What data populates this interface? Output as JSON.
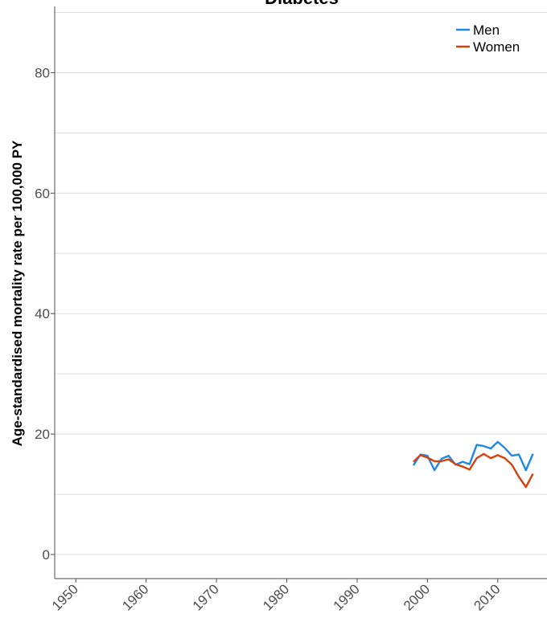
{
  "chart_data": {
    "type": "line",
    "title": "Diabetes",
    "xlabel": "",
    "ylabel": "Age-standardised mortality rate per 100,000 PY",
    "xlim": [
      1947,
      2017
    ],
    "ylim": [
      -4,
      91
    ],
    "x_ticks": [
      1950,
      1960,
      1970,
      1980,
      1990,
      2000,
      2010
    ],
    "y_ticks": [
      0,
      20,
      40,
      60,
      80
    ],
    "y_minor_ticks": [
      10,
      30,
      50,
      70,
      90
    ],
    "grid": true,
    "legend_position": "top-right",
    "colors": {
      "Men": "#1e88e5",
      "Women": "#d6400c",
      "grid": "#dcdcdc",
      "axis": "#4d4d4d"
    },
    "series": [
      {
        "name": "Men",
        "x": [
          1998,
          1999,
          2000,
          2001,
          2002,
          2003,
          2004,
          2005,
          2006,
          2007,
          2008,
          2009,
          2010,
          2011,
          2012,
          2013,
          2014,
          2015
        ],
        "values": [
          14.8,
          16.6,
          16.4,
          14.0,
          15.9,
          16.4,
          14.9,
          15.4,
          15.0,
          18.2,
          18.0,
          17.6,
          18.7,
          17.7,
          16.4,
          16.6,
          14.0,
          16.7
        ]
      },
      {
        "name": "Women",
        "x": [
          1998,
          1999,
          2000,
          2001,
          2002,
          2003,
          2004,
          2005,
          2006,
          2007,
          2008,
          2009,
          2010,
          2011,
          2012,
          2013,
          2014,
          2015
        ],
        "values": [
          15.4,
          16.5,
          16.1,
          15.5,
          15.5,
          15.8,
          15.0,
          14.6,
          14.1,
          16.0,
          16.7,
          16.0,
          16.5,
          16.0,
          14.9,
          12.9,
          11.2,
          13.4
        ]
      }
    ]
  }
}
